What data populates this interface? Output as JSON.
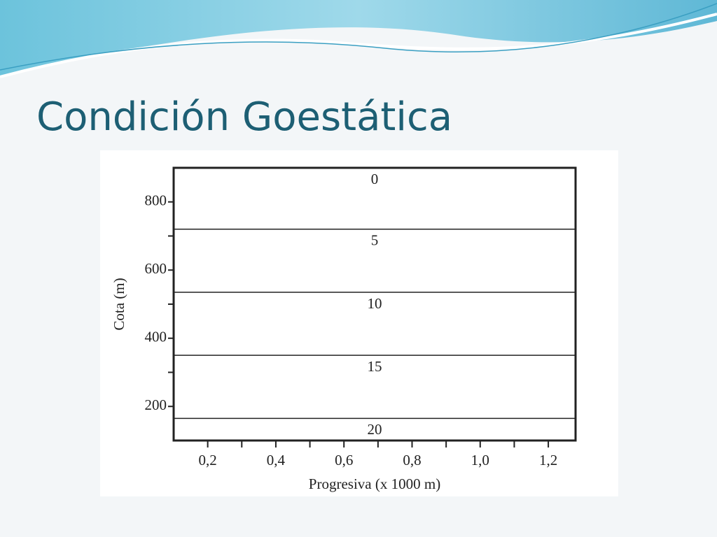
{
  "slide_title": "Condición Goestática",
  "chart_data": {
    "type": "contour-bands",
    "xlabel": "Progresiva  (x  1000 m)",
    "ylabel": "Cota (m)",
    "xlim": [
      0.1,
      1.28
    ],
    "ylim": [
      100,
      900
    ],
    "xticks": [
      {
        "value": 0.2,
        "label": "0,2"
      },
      {
        "value": 0.4,
        "label": "0,4"
      },
      {
        "value": 0.6,
        "label": "0,6"
      },
      {
        "value": 0.8,
        "label": "0,8"
      },
      {
        "value": 1.0,
        "label": "1,0"
      },
      {
        "value": 1.2,
        "label": "1,2"
      }
    ],
    "xminorticks": [
      0.3,
      0.5,
      0.7,
      0.9,
      1.1
    ],
    "yticks": [
      200,
      400,
      600,
      800
    ],
    "yminorticks": [
      300,
      500,
      700
    ],
    "boundaries": [
      720,
      535,
      350,
      165
    ],
    "zones": [
      0,
      5,
      10,
      15,
      20
    ],
    "color": "#222222"
  }
}
